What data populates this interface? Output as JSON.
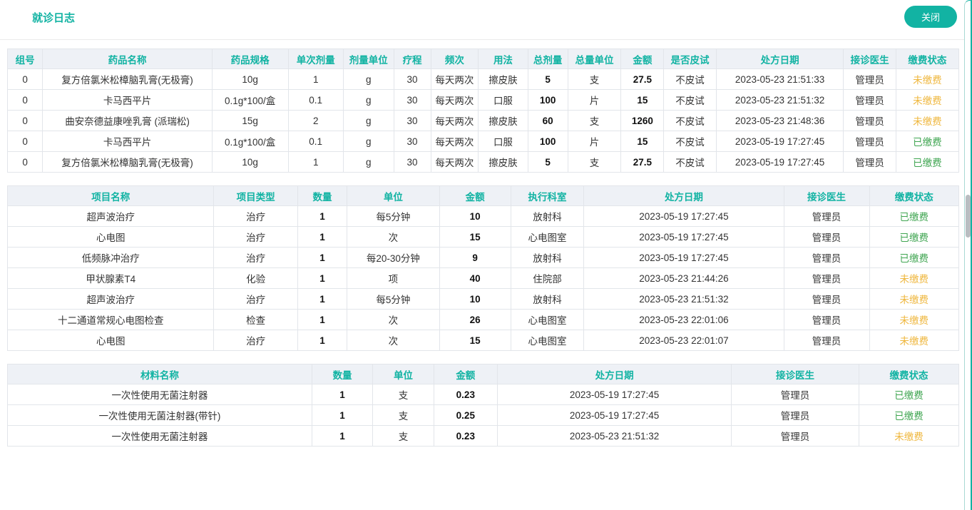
{
  "page": {
    "title": "就诊日志",
    "close_button_label": "关闭"
  },
  "colors": {
    "accent_teal": "#12b3a3",
    "paid_green": "#3fa551",
    "unpaid_amber": "#efb73e",
    "header_bg": "#eef1f6"
  },
  "status": {
    "paid": "已缴费",
    "unpaid": "未缴费"
  },
  "tables": {
    "drugs": {
      "headers": [
        "组号",
        "药品名称",
        "药品规格",
        "单次剂量",
        "剂量单位",
        "疗程",
        "频次",
        "用法",
        "总剂量",
        "总量单位",
        "金额",
        "是否皮试",
        "处方日期",
        "接诊医生",
        "缴费状态"
      ],
      "bold_columns": [
        8,
        10
      ],
      "status_column": 14,
      "rows": [
        [
          "0",
          "复方倍氯米松樟脑乳膏(无极膏)",
          "10g",
          "1",
          "g",
          "30",
          "每天两次",
          "擦皮肤",
          "5",
          "支",
          "27.5",
          "不皮试",
          "2023-05-23 21:51:33",
          "管理员",
          "未缴费"
        ],
        [
          "0",
          "卡马西平片",
          "0.1g*100/盒",
          "0.1",
          "g",
          "30",
          "每天两次",
          "口服",
          "100",
          "片",
          "15",
          "不皮试",
          "2023-05-23 21:51:32",
          "管理员",
          "未缴费"
        ],
        [
          "0",
          "曲安奈德益康唑乳膏 (派瑞松)",
          "15g",
          "2",
          "g",
          "30",
          "每天两次",
          "擦皮肤",
          "60",
          "支",
          "1260",
          "不皮试",
          "2023-05-23 21:48:36",
          "管理员",
          "未缴费"
        ],
        [
          "0",
          "卡马西平片",
          "0.1g*100/盒",
          "0.1",
          "g",
          "30",
          "每天两次",
          "口服",
          "100",
          "片",
          "15",
          "不皮试",
          "2023-05-19 17:27:45",
          "管理员",
          "已缴费"
        ],
        [
          "0",
          "复方倍氯米松樟脑乳膏(无极膏)",
          "10g",
          "1",
          "g",
          "30",
          "每天两次",
          "擦皮肤",
          "5",
          "支",
          "27.5",
          "不皮试",
          "2023-05-19 17:27:45",
          "管理员",
          "已缴费"
        ]
      ]
    },
    "projects": {
      "headers": [
        "项目名称",
        "项目类型",
        "数量",
        "单位",
        "金额",
        "执行科室",
        "处方日期",
        "接诊医生",
        "缴费状态"
      ],
      "bold_columns": [
        2,
        4
      ],
      "status_column": 8,
      "rows": [
        [
          "超声波治疗",
          "治疗",
          "1",
          "每5分钟",
          "10",
          "放射科",
          "2023-05-19 17:27:45",
          "管理员",
          "已缴费"
        ],
        [
          "心电图",
          "治疗",
          "1",
          "次",
          "15",
          "心电图室",
          "2023-05-19 17:27:45",
          "管理员",
          "已缴费"
        ],
        [
          "低频脉冲治疗",
          "治疗",
          "1",
          "每20-30分钟",
          "9",
          "放射科",
          "2023-05-19 17:27:45",
          "管理员",
          "已缴费"
        ],
        [
          "甲状腺素T4",
          "化验",
          "1",
          "项",
          "40",
          "住院部",
          "2023-05-23 21:44:26",
          "管理员",
          "未缴费"
        ],
        [
          "超声波治疗",
          "治疗",
          "1",
          "每5分钟",
          "10",
          "放射科",
          "2023-05-23 21:51:32",
          "管理员",
          "未缴费"
        ],
        [
          "十二通道常规心电图检查",
          "检查",
          "1",
          "次",
          "26",
          "心电图室",
          "2023-05-23 22:01:06",
          "管理员",
          "未缴费"
        ],
        [
          "心电图",
          "治疗",
          "1",
          "次",
          "15",
          "心电图室",
          "2023-05-23 22:01:07",
          "管理员",
          "未缴费"
        ]
      ]
    },
    "materials": {
      "headers": [
        "材料名称",
        "数量",
        "单位",
        "金额",
        "处方日期",
        "接诊医生",
        "缴费状态"
      ],
      "bold_columns": [
        1,
        3
      ],
      "status_column": 6,
      "rows": [
        [
          "一次性使用无菌注射器",
          "1",
          "支",
          "0.23",
          "2023-05-19 17:27:45",
          "管理员",
          "已缴费"
        ],
        [
          "一次性使用无菌注射器(带针)",
          "1",
          "支",
          "0.25",
          "2023-05-19 17:27:45",
          "管理员",
          "已缴费"
        ],
        [
          "一次性使用无菌注射器",
          "1",
          "支",
          "0.23",
          "2023-05-23 21:51:32",
          "管理员",
          "未缴费"
        ]
      ]
    }
  }
}
